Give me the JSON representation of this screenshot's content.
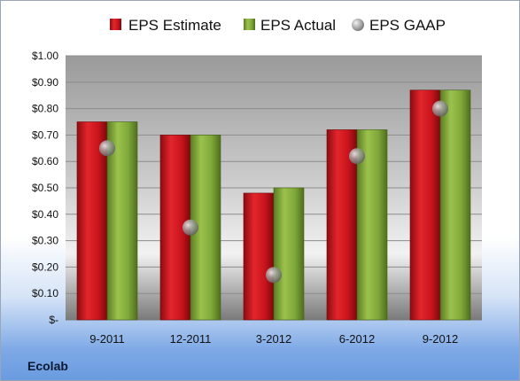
{
  "chart_data": {
    "type": "bar",
    "company": "Ecolab",
    "categories": [
      "9-2011",
      "12-2011",
      "3-2012",
      "6-2012",
      "9-2012"
    ],
    "series": [
      {
        "name": "EPS Estimate",
        "kind": "bar",
        "color": "#c9141d",
        "values": [
          0.75,
          0.7,
          0.48,
          0.72,
          0.87
        ]
      },
      {
        "name": "EPS Actual",
        "kind": "bar",
        "color": "#7fa83a",
        "values": [
          0.75,
          0.7,
          0.5,
          0.72,
          0.87
        ]
      },
      {
        "name": "EPS GAAP",
        "kind": "marker",
        "color": "#9a9a9a",
        "values": [
          0.65,
          0.35,
          0.17,
          0.62,
          0.8
        ]
      }
    ],
    "yticks": [
      "$-",
      "$0.10",
      "$0.20",
      "$0.30",
      "$0.40",
      "$0.50",
      "$0.60",
      "$0.70",
      "$0.80",
      "$0.90",
      "$1.00"
    ],
    "ylim": [
      0,
      1.0
    ],
    "grid": true,
    "legend": "top"
  }
}
